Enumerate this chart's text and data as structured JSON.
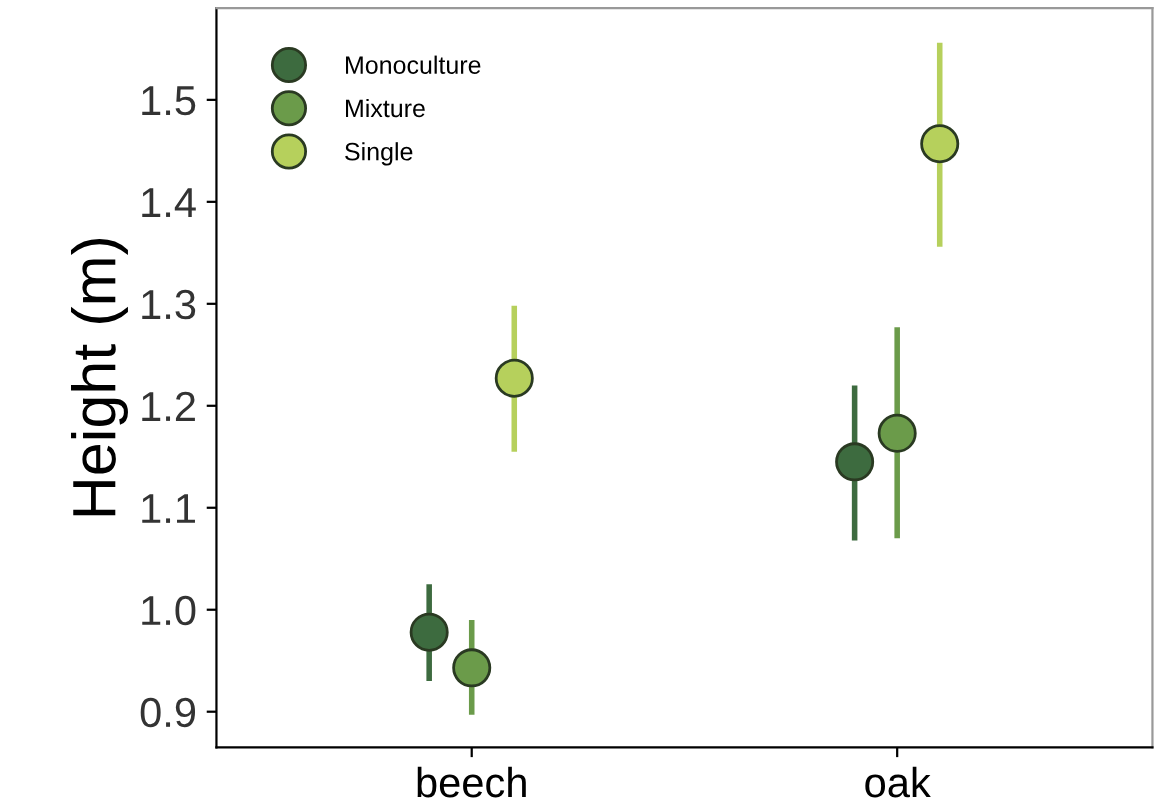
{
  "chart_data": {
    "type": "scatter",
    "ylabel": "Height (m)",
    "categories": [
      "beech",
      "oak"
    ],
    "series": [
      {
        "name": "Monoculture",
        "color": "#3d6b3f",
        "values": [
          0.978,
          1.145
        ],
        "errors": [
          [
            0.93,
            1.025
          ],
          [
            1.068,
            1.22
          ]
        ]
      },
      {
        "name": "Mixture",
        "color": "#6b9b4a",
        "values": [
          0.943,
          1.173
        ],
        "errors": [
          [
            0.897,
            0.99
          ],
          [
            1.07,
            1.277
          ]
        ]
      },
      {
        "name": "Single",
        "color": "#b6d05c",
        "values": [
          1.227,
          1.457
        ],
        "errors": [
          [
            1.155,
            1.298
          ],
          [
            1.356,
            1.556
          ]
        ]
      }
    ],
    "ylim": [
      0.865,
      1.59
    ],
    "yticks": [
      0.9,
      {
        "value": 1,
        "label": "1.0"
      },
      1.1,
      1.2,
      1.3,
      1.4,
      1.5
    ],
    "grid": false,
    "legend": "top left",
    "marker": "circle"
  }
}
